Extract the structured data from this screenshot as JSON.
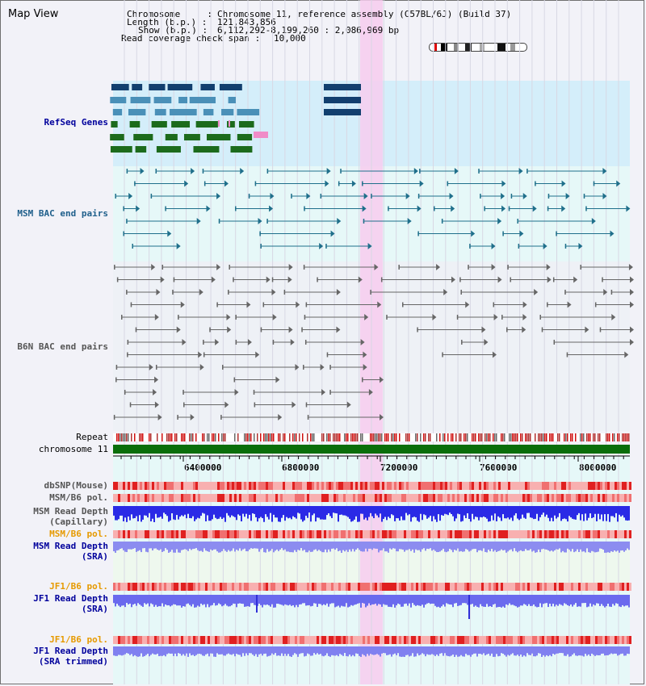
{
  "title": "Map View",
  "header": {
    "chromosome_key": "Chromosome     :",
    "chromosome_val": "Chromosome 11, reference assembly (C57BL/6J) (Build 37)",
    "length_key": "Length (b.p.) :",
    "length_val": "121,843,856",
    "show_key": "Show (b.p.) :",
    "show_val": "6,112,292-8,199,260 : 2,086,969 bp",
    "coverage_key": "Read coverage check span :",
    "coverage_val": "10,000"
  },
  "tracks": {
    "refseq": "RefSeq Genes",
    "msm_bac": "MSM BAC end pairs",
    "b6n_bac": "B6N BAC end pairs",
    "repeat": "Repeat",
    "chromosome": "chromosome 11",
    "dbsnp": "dbSNP(Mouse)",
    "msm_b6_pol_1": "MSM/B6 pol.",
    "msm_read_depth_cap_1": "MSM Read Depth",
    "msm_read_depth_cap_2": "(Capillary)",
    "msm_b6_pol_2": "MSM/B6 pol.",
    "msm_read_depth_sra_1": "MSM Read Depth",
    "msm_read_depth_sra_2": "(SRA)",
    "jf1_b6_pol_1": "JF1/B6 pol.",
    "jf1_read_depth_sra_1": "JF1 Read Depth",
    "jf1_read_depth_sra_2": "(SRA)",
    "jf1_b6_pol_2": "JF1/B6 pol.",
    "jf1_read_depth_trim_1": "JF1 Read Depth",
    "jf1_read_depth_trim_2": "(SRA trimmed)"
  },
  "axis": {
    "ticks": [
      "6400000",
      "6800000",
      "7200000",
      "7600000",
      "8000000"
    ]
  },
  "colors": {
    "refseq_bg": "#d4eefa",
    "bac_bg": "#e6f8f8",
    "gene_dark": "#123f6e",
    "gene_mid": "#4a90b8",
    "gene_green": "#1c6b1c",
    "msm": "#1f6f8b",
    "b6n": "#666666",
    "chrom": "#0a6e0a",
    "depth": "#2a2ae6",
    "depth_light": "#7d7dee",
    "label_blue": "#00009c",
    "label_orange": "#e69a00"
  }
}
